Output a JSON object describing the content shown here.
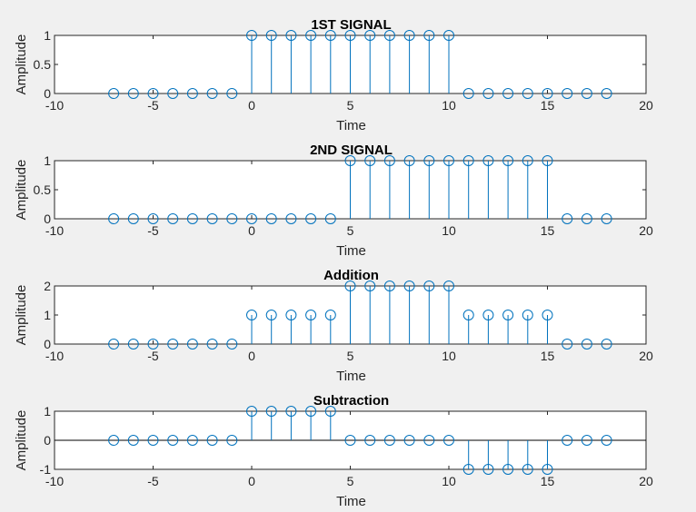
{
  "chart_data": [
    {
      "type": "stem",
      "title": "1ST SIGNAL",
      "xlabel": "Time",
      "ylabel": "Amplitude",
      "xlim": [
        -10,
        20
      ],
      "ylim": [
        0,
        1
      ],
      "xticks": [
        "-10",
        "-5",
        "0",
        "5",
        "10",
        "15",
        "20"
      ],
      "yticks": [
        "0",
        "0.5",
        "1"
      ],
      "x": [
        -7,
        -6,
        -5,
        -4,
        -3,
        -2,
        -1,
        0,
        1,
        2,
        3,
        4,
        5,
        6,
        7,
        8,
        9,
        10,
        11,
        12,
        13,
        14,
        15,
        16,
        17,
        18
      ],
      "y": [
        0,
        0,
        0,
        0,
        0,
        0,
        0,
        1,
        1,
        1,
        1,
        1,
        1,
        1,
        1,
        1,
        1,
        1,
        0,
        0,
        0,
        0,
        0,
        0,
        0,
        0
      ]
    },
    {
      "type": "stem",
      "title": "2ND SIGNAL",
      "xlabel": "Time",
      "ylabel": "Amplitude",
      "xlim": [
        -10,
        20
      ],
      "ylim": [
        0,
        1
      ],
      "xticks": [
        "-10",
        "-5",
        "0",
        "5",
        "10",
        "15",
        "20"
      ],
      "yticks": [
        "0",
        "0.5",
        "1"
      ],
      "x": [
        -7,
        -6,
        -5,
        -4,
        -3,
        -2,
        -1,
        0,
        1,
        2,
        3,
        4,
        5,
        6,
        7,
        8,
        9,
        10,
        11,
        12,
        13,
        14,
        15,
        16,
        17,
        18
      ],
      "y": [
        0,
        0,
        0,
        0,
        0,
        0,
        0,
        0,
        0,
        0,
        0,
        0,
        1,
        1,
        1,
        1,
        1,
        1,
        1,
        1,
        1,
        1,
        1,
        0,
        0,
        0
      ]
    },
    {
      "type": "stem",
      "title": "Addition",
      "xlabel": "Time",
      "ylabel": "Amplitude",
      "xlim": [
        -10,
        20
      ],
      "ylim": [
        0,
        2
      ],
      "xticks": [
        "-10",
        "-5",
        "0",
        "5",
        "10",
        "15",
        "20"
      ],
      "yticks": [
        "0",
        "1",
        "2"
      ],
      "x": [
        -7,
        -6,
        -5,
        -4,
        -3,
        -2,
        -1,
        0,
        1,
        2,
        3,
        4,
        5,
        6,
        7,
        8,
        9,
        10,
        11,
        12,
        13,
        14,
        15,
        16,
        17,
        18
      ],
      "y": [
        0,
        0,
        0,
        0,
        0,
        0,
        0,
        1,
        1,
        1,
        1,
        1,
        2,
        2,
        2,
        2,
        2,
        2,
        1,
        1,
        1,
        1,
        1,
        0,
        0,
        0
      ]
    },
    {
      "type": "stem",
      "title": "Subtraction",
      "xlabel": "Time",
      "ylabel": "Amplitude",
      "xlim": [
        -10,
        20
      ],
      "ylim": [
        -1,
        1
      ],
      "xticks": [
        "-10",
        "-5",
        "0",
        "5",
        "10",
        "15",
        "20"
      ],
      "yticks": [
        "-1",
        "0",
        "1"
      ],
      "x": [
        -7,
        -6,
        -5,
        -4,
        -3,
        -2,
        -1,
        0,
        1,
        2,
        3,
        4,
        5,
        6,
        7,
        8,
        9,
        10,
        11,
        12,
        13,
        14,
        15,
        16,
        17,
        18
      ],
      "y": [
        0,
        0,
        0,
        0,
        0,
        0,
        0,
        1,
        1,
        1,
        1,
        1,
        0,
        0,
        0,
        0,
        0,
        0,
        -1,
        -1,
        -1,
        -1,
        -1,
        0,
        0,
        0
      ]
    }
  ],
  "colors": {
    "series": "#0072bd",
    "axes": "#262626",
    "background": "#f0f0f0",
    "plot_area": "#ffffff"
  }
}
